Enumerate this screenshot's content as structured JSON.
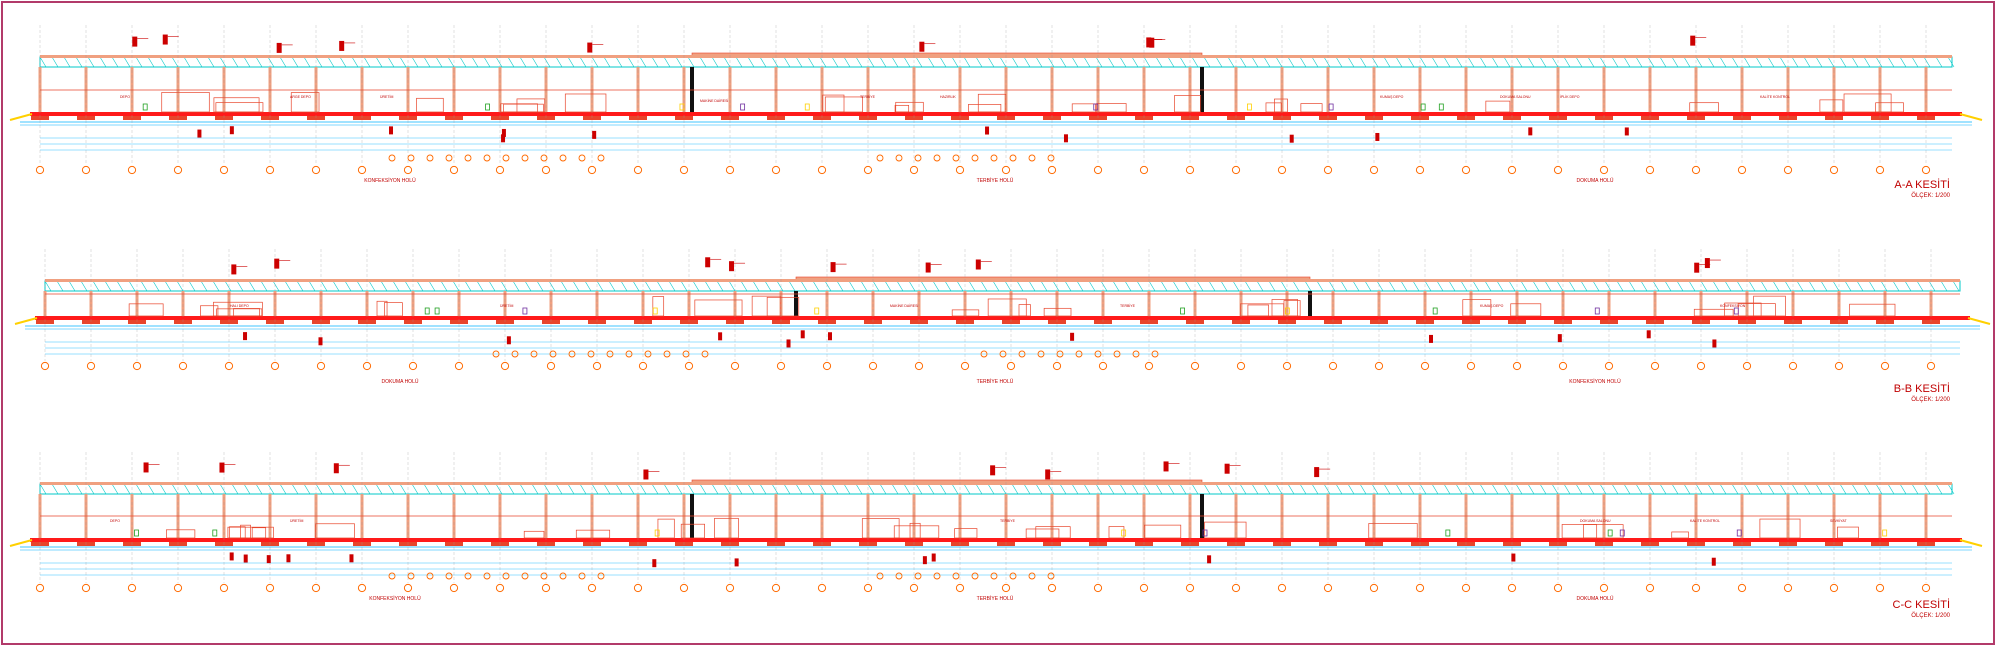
{
  "sheet": {
    "frame_color": "#b23a6a",
    "background": "#ffffff"
  },
  "colors": {
    "structure": "#e8452b",
    "slab": "#ff1a1a",
    "column": "#f0a080",
    "roof": "#00c8c8",
    "grid_bubble": "#ff6a00",
    "axis_line": "#00b0ff",
    "black_detail": "#111111",
    "tag": "#cc0000",
    "accent_green": "#20a020",
    "accent_yellow": "#ffd000",
    "accent_purple": "#7030a0"
  },
  "sections": [
    {
      "id": "A-A",
      "title": "A-A KESİTİ",
      "scale": "ÖLÇEK: 1/200",
      "hall_labels": [
        "KONFEKSİYON HOLÜ",
        "TERBİYE HOLÜ",
        "DOKUMA HOLÜ"
      ],
      "room_labels": [
        "DEPO",
        "ARGE DEPO",
        "ÜRETİM",
        "MAKİNE DAİRESİ",
        "TERBİYE",
        "HAZIRLIK",
        "KUMAŞ DEPO",
        "DOKUMA SALONU",
        "İPLİK DEPO",
        "KALİTE KONTROL"
      ]
    },
    {
      "id": "B-B",
      "title": "B-B KESİTİ",
      "scale": "ÖLÇEK: 1/200",
      "hall_labels": [
        "DOKUMA HOLÜ",
        "TERBİYE HOLÜ",
        "KONFEKSİYON HOLÜ"
      ],
      "room_labels": [
        "HALI DEPO",
        "ÜRETİM",
        "MAKİNE DAİRESİ",
        "TERBİYE",
        "KUMAŞ DEPO",
        "KONFEKSİYON"
      ]
    },
    {
      "id": "C-C",
      "title": "C-C KESİTİ",
      "scale": "ÖLÇEK: 1/200",
      "hall_labels": [
        "KONFEKSİYON HOLÜ",
        "TERBİYE HOLÜ",
        "DOKUMA HOLÜ"
      ],
      "room_labels": [
        "DEPO",
        "ÜRETİM",
        "TERBİYE",
        "DOKUMA SALONU",
        "KALİTE KONTROL",
        "SEVKİYAT"
      ]
    }
  ]
}
